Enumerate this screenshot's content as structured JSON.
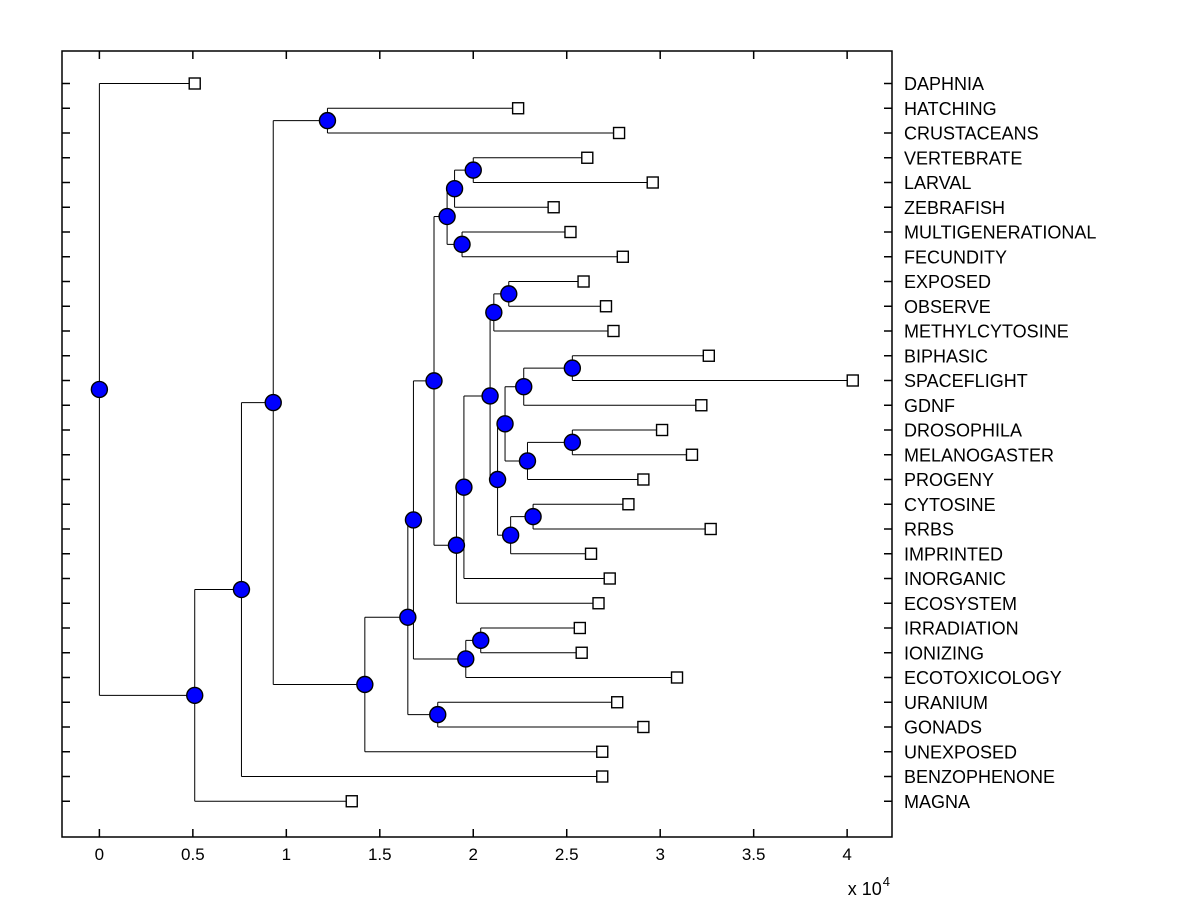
{
  "figure": {
    "background": "#ffffff"
  },
  "chart_data": {
    "type": "dendrogram",
    "orientation": "horizontal-root-left",
    "leaf_labels_position": "right",
    "grid": false,
    "x_axis": {
      "range": [
        -2000,
        42400
      ],
      "tick_values": [
        0,
        5000,
        10000,
        15000,
        20000,
        25000,
        30000,
        35000,
        40000
      ],
      "tick_labels": [
        "0",
        "0.5",
        "1",
        "1.5",
        "2",
        "2.5",
        "3",
        "3.5",
        "4"
      ],
      "multiplier_base": "x 10",
      "multiplier_exponent": "4"
    },
    "leaves": [
      {
        "id": "L0",
        "label": "DAPHNIA",
        "distance": 5100
      },
      {
        "id": "L1",
        "label": "HATCHING",
        "distance": 22400
      },
      {
        "id": "L2",
        "label": "CRUSTACEANS",
        "distance": 27800
      },
      {
        "id": "L3",
        "label": "VERTEBRATE",
        "distance": 26100
      },
      {
        "id": "L4",
        "label": "LARVAL",
        "distance": 29600
      },
      {
        "id": "L5",
        "label": "ZEBRAFISH",
        "distance": 24300
      },
      {
        "id": "L6",
        "label": "MULTIGENERATIONAL",
        "distance": 25200
      },
      {
        "id": "L7",
        "label": "FECUNDITY",
        "distance": 28000
      },
      {
        "id": "L8",
        "label": "EXPOSED",
        "distance": 25900
      },
      {
        "id": "L9",
        "label": "OBSERVE",
        "distance": 27100
      },
      {
        "id": "L10",
        "label": "METHYLCYTOSINE",
        "distance": 27500
      },
      {
        "id": "L11",
        "label": "BIPHASIC",
        "distance": 32600
      },
      {
        "id": "L12",
        "label": "SPACEFLIGHT",
        "distance": 40300
      },
      {
        "id": "L13",
        "label": "GDNF",
        "distance": 32200
      },
      {
        "id": "L14",
        "label": "DROSOPHILA",
        "distance": 30100
      },
      {
        "id": "L15",
        "label": "MELANOGASTER",
        "distance": 31700
      },
      {
        "id": "L16",
        "label": "PROGENY",
        "distance": 29100
      },
      {
        "id": "L17",
        "label": "CYTOSINE",
        "distance": 28300
      },
      {
        "id": "L18",
        "label": "RRBS",
        "distance": 32700
      },
      {
        "id": "L19",
        "label": "IMPRINTED",
        "distance": 26300
      },
      {
        "id": "L20",
        "label": "INORGANIC",
        "distance": 27300
      },
      {
        "id": "L21",
        "label": "ECOSYSTEM",
        "distance": 26700
      },
      {
        "id": "L22",
        "label": "IRRADIATION",
        "distance": 25700
      },
      {
        "id": "L23",
        "label": "IONIZING",
        "distance": 25800
      },
      {
        "id": "L24",
        "label": "ECOTOXICOLOGY",
        "distance": 30900
      },
      {
        "id": "L25",
        "label": "URANIUM",
        "distance": 27700
      },
      {
        "id": "L26",
        "label": "GONADS",
        "distance": 29100
      },
      {
        "id": "L27",
        "label": "UNEXPOSED",
        "distance": 26900
      },
      {
        "id": "L28",
        "label": "BENZOPHENONE",
        "distance": 26900
      },
      {
        "id": "L29",
        "label": "MAGNA",
        "distance": 13500
      }
    ],
    "internal_nodes": [
      {
        "id": "N0",
        "distance": 0,
        "children": [
          "L0",
          "N1"
        ]
      },
      {
        "id": "N1",
        "distance": 5100,
        "children": [
          "N2",
          "L29"
        ]
      },
      {
        "id": "N2",
        "distance": 7600,
        "children": [
          "N3",
          "L28"
        ]
      },
      {
        "id": "N3",
        "distance": 9300,
        "children": [
          "N4",
          "N5"
        ]
      },
      {
        "id": "N4",
        "distance": 12200,
        "children": [
          "L1",
          "L2"
        ]
      },
      {
        "id": "N5",
        "distance": 14200,
        "children": [
          "N6",
          "L27"
        ]
      },
      {
        "id": "N6",
        "distance": 16500,
        "children": [
          "N7",
          "N8"
        ]
      },
      {
        "id": "N7",
        "distance": 16800,
        "children": [
          "N9",
          "N10"
        ]
      },
      {
        "id": "N8",
        "distance": 18100,
        "children": [
          "L25",
          "L26"
        ]
      },
      {
        "id": "N9",
        "distance": 17900,
        "children": [
          "N11",
          "N12"
        ]
      },
      {
        "id": "N10",
        "distance": 19600,
        "children": [
          "N13",
          "L24"
        ]
      },
      {
        "id": "N11",
        "distance": 18600,
        "children": [
          "N14",
          "N16"
        ]
      },
      {
        "id": "N12",
        "distance": 19100,
        "children": [
          "N17",
          "L21"
        ]
      },
      {
        "id": "N13",
        "distance": 20400,
        "children": [
          "L22",
          "L23"
        ]
      },
      {
        "id": "N14",
        "distance": 19000,
        "children": [
          "N15",
          "L5"
        ]
      },
      {
        "id": "N15",
        "distance": 20000,
        "children": [
          "L3",
          "L4"
        ]
      },
      {
        "id": "N16",
        "distance": 19400,
        "children": [
          "L6",
          "L7"
        ]
      },
      {
        "id": "N17",
        "distance": 19500,
        "children": [
          "N18",
          "L20"
        ]
      },
      {
        "id": "N18",
        "distance": 20900,
        "children": [
          "N19",
          "N20"
        ]
      },
      {
        "id": "N19",
        "distance": 21100,
        "children": [
          "N21",
          "L10"
        ]
      },
      {
        "id": "N20",
        "distance": 21300,
        "children": [
          "N22",
          "N23"
        ]
      },
      {
        "id": "N21",
        "distance": 21900,
        "children": [
          "L8",
          "L9"
        ]
      },
      {
        "id": "N22",
        "distance": 21700,
        "children": [
          "N24",
          "N25"
        ]
      },
      {
        "id": "N23",
        "distance": 22000,
        "children": [
          "N26",
          "L19"
        ]
      },
      {
        "id": "N24",
        "distance": 22700,
        "children": [
          "N27",
          "L13"
        ]
      },
      {
        "id": "N25",
        "distance": 22900,
        "children": [
          "N28",
          "L16"
        ]
      },
      {
        "id": "N26",
        "distance": 23200,
        "children": [
          "L17",
          "L18"
        ]
      },
      {
        "id": "N27",
        "distance": 25300,
        "children": [
          "L11",
          "L12"
        ]
      },
      {
        "id": "N28",
        "distance": 25300,
        "children": [
          "L14",
          "L15"
        ]
      }
    ],
    "styles": {
      "branch_color": "#000000",
      "axis_color": "#000000",
      "internal_node_fill": "#0000ff",
      "internal_node_edge": "#000000",
      "leaf_marker_fill": "#ffffff",
      "leaf_marker_edge": "#000000",
      "label_color": "#000000"
    }
  }
}
